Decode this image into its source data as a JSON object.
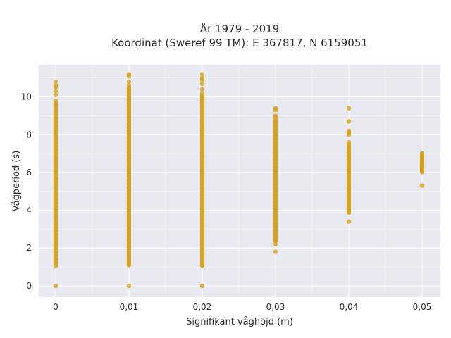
{
  "chart_data": {
    "type": "scatter",
    "title": [
      "År 1979 - 2019",
      "Koordinat (Sweref 99 TM): E 367817, N 6159051"
    ],
    "xlabel": "Signifikant våghöjd (m)",
    "ylabel": "Vågperiod (s)",
    "xlim": [
      -0.0023,
      0.0525
    ],
    "ylim": [
      -0.6,
      11.7
    ],
    "x_ticks": [
      0,
      0.01,
      0.02,
      0.03,
      0.04,
      0.05
    ],
    "x_tick_labels": [
      "0",
      "0,01",
      "0,02",
      "0,03",
      "0,04",
      "0,05"
    ],
    "y_ticks": [
      0,
      2,
      4,
      6,
      8,
      10
    ],
    "y_tick_labels": [
      "0",
      "2",
      "4",
      "6",
      "8",
      "10"
    ],
    "grid": true,
    "legend": "none",
    "marker_color": "#D4A017",
    "background_color": "#E9E9F1",
    "series": [
      {
        "x": [
          0,
          0.01,
          0.02,
          0.03,
          0.04,
          0.05
        ],
        "y_min": [
          1.0,
          1.0,
          1.0,
          2.3,
          3.8,
          5.9
        ],
        "y_max": [
          9.8,
          10.6,
          10.2,
          8.9,
          7.6,
          7.0
        ],
        "outliers": [
          [
            0,
            0.0
          ],
          [
            0,
            10.1
          ],
          [
            0,
            10.3
          ],
          [
            0,
            10.5
          ],
          [
            0,
            10.6
          ],
          [
            0,
            10.8
          ],
          [
            0.01,
            0.0
          ],
          [
            0.01,
            10.8
          ],
          [
            0.01,
            11.1
          ],
          [
            0.01,
            11.2
          ],
          [
            0.02,
            0.0
          ],
          [
            0.02,
            1.1
          ],
          [
            0.02,
            10.4
          ],
          [
            0.02,
            10.7
          ],
          [
            0.02,
            10.9
          ],
          [
            0.02,
            11.0
          ],
          [
            0.02,
            11.2
          ],
          [
            0.03,
            1.8
          ],
          [
            0.03,
            2.2
          ],
          [
            0.03,
            9.0
          ],
          [
            0.03,
            9.3
          ],
          [
            0.03,
            9.4
          ],
          [
            0.04,
            3.4
          ],
          [
            0.04,
            8.0
          ],
          [
            0.04,
            8.1
          ],
          [
            0.04,
            8.2
          ],
          [
            0.04,
            8.7
          ],
          [
            0.04,
            9.4
          ],
          [
            0.05,
            5.3
          ],
          [
            0.05,
            6.1
          ],
          [
            0.05,
            6.2
          ],
          [
            0.05,
            6.3
          ],
          [
            0.05,
            6.5
          ],
          [
            0.05,
            6.7
          ],
          [
            0.05,
            7.0
          ]
        ]
      }
    ]
  }
}
